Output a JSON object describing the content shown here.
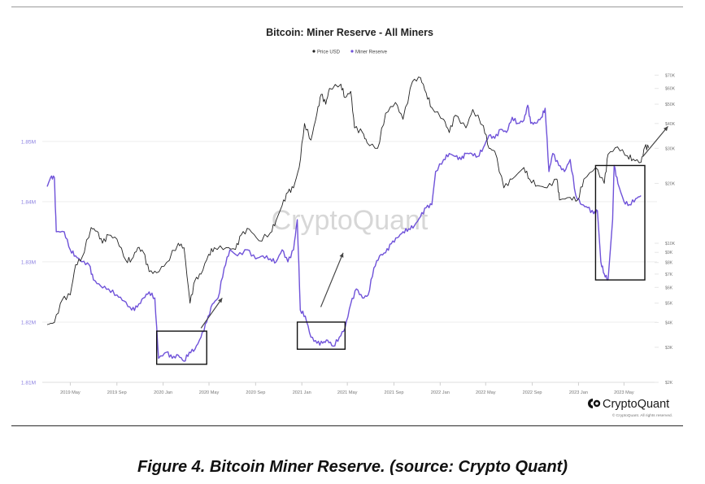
{
  "chart_data": {
    "type": "line",
    "title": "Bitcoin: Miner Reserve - All Miners",
    "legend": {
      "placement": "top-center",
      "items": [
        {
          "label": "Price USD",
          "color": "#222222"
        },
        {
          "label": "Miner Reserve",
          "color": "#6f52d9"
        }
      ]
    },
    "x_ticks": [
      "2019 May",
      "2019 Sep",
      "2020 Jan",
      "2020 May",
      "2020 Sep",
      "2021 Jan",
      "2021 May",
      "2021 Sep",
      "2022 Jan",
      "2022 May",
      "2022 Sep",
      "2023 Jan",
      "2023 May"
    ],
    "left_axis": {
      "ticks": [
        "1.81M",
        "1.82M",
        "1.83M",
        "1.84M",
        "1.85M"
      ],
      "range": [
        1.81,
        1.862
      ],
      "unit": "M"
    },
    "right_axis": {
      "scale": "log",
      "ticks": [
        "$2K",
        "$3K",
        "$4K",
        "$5K",
        "$6K",
        "$7K",
        "$8K",
        "$9K",
        "$10K",
        "$20K",
        "$30K",
        "$40K",
        "$50K",
        "$60K",
        "$70K"
      ],
      "range": [
        2000,
        75000
      ]
    },
    "grid": true,
    "watermark": "CryptoQuant",
    "series": [
      {
        "name": "Miner Reserve",
        "axis": "left",
        "color": "#6f52d9",
        "points": [
          [
            "2019-03-01",
            1.8425
          ],
          [
            "2019-03-10",
            1.844
          ],
          [
            "2019-03-20",
            1.844
          ],
          [
            "2019-03-25",
            1.835
          ],
          [
            "2019-04-15",
            1.835
          ],
          [
            "2019-05-01",
            1.832
          ],
          [
            "2019-05-15",
            1.831
          ],
          [
            "2019-06-01",
            1.83
          ],
          [
            "2019-06-20",
            1.8295
          ],
          [
            "2019-07-01",
            1.827
          ],
          [
            "2019-07-20",
            1.826
          ],
          [
            "2019-08-10",
            1.8255
          ],
          [
            "2019-09-01",
            1.8245
          ],
          [
            "2019-09-20",
            1.8235
          ],
          [
            "2019-10-10",
            1.822
          ],
          [
            "2019-10-25",
            1.8225
          ],
          [
            "2019-11-10",
            1.824
          ],
          [
            "2019-11-25",
            1.825
          ],
          [
            "2019-12-10",
            1.824
          ],
          [
            "2019-12-20",
            1.814
          ],
          [
            "2020-01-10",
            1.815
          ],
          [
            "2020-01-25",
            1.814
          ],
          [
            "2020-02-10",
            1.8145
          ],
          [
            "2020-02-25",
            1.8135
          ],
          [
            "2020-03-10",
            1.815
          ],
          [
            "2020-03-25",
            1.8155
          ],
          [
            "2020-04-10",
            1.8175
          ],
          [
            "2020-04-25",
            1.82
          ],
          [
            "2020-05-10",
            1.823
          ],
          [
            "2020-05-25",
            1.824
          ],
          [
            "2020-06-10",
            1.829
          ],
          [
            "2020-06-25",
            1.832
          ],
          [
            "2020-07-15",
            1.831
          ],
          [
            "2020-08-10",
            1.832
          ],
          [
            "2020-09-01",
            1.8305
          ],
          [
            "2020-09-20",
            1.831
          ],
          [
            "2020-10-10",
            1.8305
          ],
          [
            "2020-10-25",
            1.83
          ],
          [
            "2020-11-10",
            1.832
          ],
          [
            "2020-11-25",
            1.83
          ],
          [
            "2020-12-10",
            1.832
          ],
          [
            "2020-12-20",
            1.837
          ],
          [
            "2020-12-28",
            1.822
          ],
          [
            "2021-01-10",
            1.821
          ],
          [
            "2021-01-25",
            1.8175
          ],
          [
            "2021-02-10",
            1.8165
          ],
          [
            "2021-02-25",
            1.8165
          ],
          [
            "2021-03-10",
            1.817
          ],
          [
            "2021-03-25",
            1.816
          ],
          [
            "2021-04-10",
            1.8175
          ],
          [
            "2021-04-25",
            1.819
          ],
          [
            "2021-05-10",
            1.823
          ],
          [
            "2021-05-25",
            1.8255
          ],
          [
            "2021-06-10",
            1.824
          ],
          [
            "2021-06-25",
            1.8245
          ],
          [
            "2021-07-10",
            1.829
          ],
          [
            "2021-07-25",
            1.831
          ],
          [
            "2021-08-10",
            1.8315
          ],
          [
            "2021-08-25",
            1.833
          ],
          [
            "2021-09-10",
            1.834
          ],
          [
            "2021-09-25",
            1.835
          ],
          [
            "2021-10-10",
            1.8355
          ],
          [
            "2021-10-25",
            1.836
          ],
          [
            "2021-11-10",
            1.8375
          ],
          [
            "2021-11-25",
            1.839
          ],
          [
            "2021-12-10",
            1.8395
          ],
          [
            "2021-12-20",
            1.845
          ],
          [
            "2022-01-10",
            1.847
          ],
          [
            "2022-01-25",
            1.848
          ],
          [
            "2022-02-10",
            1.8475
          ],
          [
            "2022-02-25",
            1.847
          ],
          [
            "2022-03-10",
            1.848
          ],
          [
            "2022-03-25",
            1.848
          ],
          [
            "2022-04-10",
            1.8475
          ],
          [
            "2022-04-25",
            1.849
          ],
          [
            "2022-05-10",
            1.851
          ],
          [
            "2022-05-25",
            1.8505
          ],
          [
            "2022-06-10",
            1.852
          ],
          [
            "2022-06-25",
            1.8515
          ],
          [
            "2022-07-10",
            1.854
          ],
          [
            "2022-07-25",
            1.853
          ],
          [
            "2022-08-10",
            1.8535
          ],
          [
            "2022-08-20",
            1.856
          ],
          [
            "2022-08-28",
            1.853
          ],
          [
            "2022-09-10",
            1.853
          ],
          [
            "2022-09-25",
            1.854
          ],
          [
            "2022-10-05",
            1.8555
          ],
          [
            "2022-10-15",
            1.845
          ],
          [
            "2022-10-25",
            1.848
          ],
          [
            "2022-11-10",
            1.846
          ],
          [
            "2022-11-25",
            1.845
          ],
          [
            "2022-12-10",
            1.847
          ],
          [
            "2022-12-25",
            1.841
          ],
          [
            "2023-01-10",
            1.8395
          ],
          [
            "2023-01-25",
            1.839
          ],
          [
            "2023-02-10",
            1.838
          ],
          [
            "2023-02-20",
            1.8385
          ],
          [
            "2023-03-01",
            1.83
          ],
          [
            "2023-03-10",
            1.828
          ],
          [
            "2023-03-20",
            1.827
          ],
          [
            "2023-04-01",
            1.837
          ],
          [
            "2023-04-05",
            1.846
          ],
          [
            "2023-04-15",
            1.843
          ],
          [
            "2023-05-01",
            1.84
          ],
          [
            "2023-05-15",
            1.8395
          ],
          [
            "2023-06-01",
            1.8405
          ],
          [
            "2023-06-15",
            1.841
          ]
        ]
      },
      {
        "name": "Price USD",
        "axis": "right",
        "color": "#222222",
        "points": [
          [
            "2019-03-01",
            3900
          ],
          [
            "2019-03-20",
            4000
          ],
          [
            "2019-04-10",
            5200
          ],
          [
            "2019-05-01",
            5500
          ],
          [
            "2019-05-15",
            7800
          ],
          [
            "2019-06-01",
            8500
          ],
          [
            "2019-06-25",
            12000
          ],
          [
            "2019-07-10",
            11500
          ],
          [
            "2019-07-25",
            10000
          ],
          [
            "2019-08-10",
            11000
          ],
          [
            "2019-09-01",
            10500
          ],
          [
            "2019-09-25",
            8200
          ],
          [
            "2019-10-10",
            8300
          ],
          [
            "2019-10-26",
            9500
          ],
          [
            "2019-11-10",
            9000
          ],
          [
            "2019-11-25",
            7200
          ],
          [
            "2019-12-15",
            7100
          ],
          [
            "2020-01-10",
            8000
          ],
          [
            "2020-02-10",
            10000
          ],
          [
            "2020-02-25",
            9500
          ],
          [
            "2020-03-12",
            5000
          ],
          [
            "2020-03-25",
            6500
          ],
          [
            "2020-04-10",
            7000
          ],
          [
            "2020-04-30",
            8800
          ],
          [
            "2020-05-15",
            9500
          ],
          [
            "2020-06-15",
            9500
          ],
          [
            "2020-07-10",
            9300
          ],
          [
            "2020-07-25",
            11000
          ],
          [
            "2020-08-15",
            11800
          ],
          [
            "2020-09-10",
            10300
          ],
          [
            "2020-10-10",
            11300
          ],
          [
            "2020-10-25",
            13000
          ],
          [
            "2020-11-10",
            15500
          ],
          [
            "2020-11-25",
            18000
          ],
          [
            "2020-12-10",
            19000
          ],
          [
            "2020-12-25",
            24000
          ],
          [
            "2021-01-08",
            40000
          ],
          [
            "2021-01-25",
            33000
          ],
          [
            "2021-02-10",
            45000
          ],
          [
            "2021-02-21",
            56000
          ],
          [
            "2021-03-05",
            50000
          ],
          [
            "2021-03-15",
            60000
          ],
          [
            "2021-04-14",
            63000
          ],
          [
            "2021-04-25",
            54000
          ],
          [
            "2021-05-10",
            58000
          ],
          [
            "2021-05-20",
            38000
          ],
          [
            "2021-06-10",
            36000
          ],
          [
            "2021-06-22",
            32000
          ],
          [
            "2021-07-20",
            30000
          ],
          [
            "2021-08-10",
            45000
          ],
          [
            "2021-09-05",
            51000
          ],
          [
            "2021-09-25",
            42000
          ],
          [
            "2021-10-20",
            65000
          ],
          [
            "2021-11-10",
            68000
          ],
          [
            "2021-11-25",
            57000
          ],
          [
            "2021-12-10",
            48000
          ],
          [
            "2022-01-10",
            42000
          ],
          [
            "2022-01-25",
            36000
          ],
          [
            "2022-02-10",
            44000
          ],
          [
            "2022-03-10",
            38000
          ],
          [
            "2022-03-28",
            47000
          ],
          [
            "2022-04-25",
            39000
          ],
          [
            "2022-05-10",
            30000
          ],
          [
            "2022-05-25",
            29000
          ],
          [
            "2022-06-18",
            19000
          ],
          [
            "2022-07-10",
            21000
          ],
          [
            "2022-08-10",
            24000
          ],
          [
            "2022-08-25",
            21000
          ],
          [
            "2022-09-15",
            19500
          ],
          [
            "2022-10-10",
            19000
          ],
          [
            "2022-11-05",
            21000
          ],
          [
            "2022-11-12",
            16500
          ],
          [
            "2022-12-10",
            17000
          ],
          [
            "2022-12-30",
            16500
          ],
          [
            "2023-01-15",
            21000
          ],
          [
            "2023-02-15",
            24000
          ],
          [
            "2023-03-10",
            20000
          ],
          [
            "2023-03-20",
            28000
          ],
          [
            "2023-04-14",
            30500
          ],
          [
            "2023-05-10",
            27500
          ],
          [
            "2023-05-25",
            26500
          ],
          [
            "2023-06-15",
            25500
          ],
          [
            "2023-06-25",
            30500
          ],
          [
            "2023-07-05",
            30200
          ]
        ]
      }
    ],
    "annotations": [
      {
        "type": "box",
        "from": [
          "2019-12-15",
          1.813
        ],
        "to": [
          "2020-04-25",
          1.8185
        ]
      },
      {
        "type": "box",
        "from": [
          "2020-12-20",
          1.8155
        ],
        "to": [
          "2021-04-25",
          1.82
        ]
      },
      {
        "type": "box",
        "from": [
          "2023-02-15",
          1.827
        ],
        "to": [
          "2023-06-25",
          1.846
        ]
      },
      {
        "type": "arrow",
        "from": [
          "2020-04-10",
          1.819
        ],
        "to": [
          "2020-06-05",
          1.824
        ]
      },
      {
        "type": "arrow",
        "from": [
          "2021-02-20",
          1.8225
        ],
        "to": [
          "2021-04-20",
          1.8315
        ]
      },
      {
        "type": "arrow",
        "from": [
          "2023-06-20",
          1.8475
        ],
        "to": [
          "2023-08-25",
          1.8525
        ]
      }
    ]
  },
  "logo": {
    "name": "CryptoQuant",
    "rights": "© CryptoQuant. All rights reserved."
  },
  "caption": "Figure 4.  Bitcoin Miner Reserve. (source: Crypto Quant)"
}
